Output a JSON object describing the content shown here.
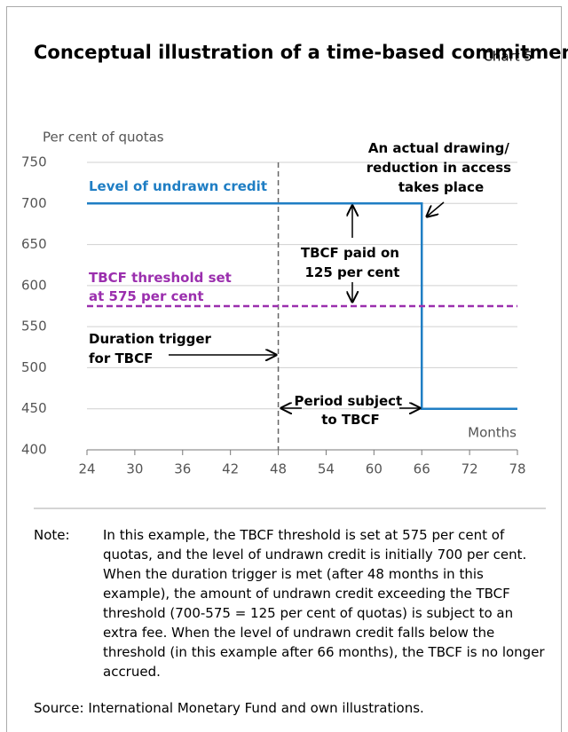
{
  "chart_data": {
    "type": "line",
    "title": "Conceptual illustration of a time-based commitment fee (TBCF)",
    "chart_label": "Chart 5",
    "y_axis_label": "Per cent of quotas",
    "x_axis_label": "Months",
    "xlim": [
      24,
      78
    ],
    "xticks": [
      24,
      30,
      36,
      42,
      48,
      54,
      60,
      66,
      72,
      78
    ],
    "ylim": [
      400,
      750
    ],
    "yticks": [
      400,
      450,
      500,
      550,
      600,
      650,
      700,
      750
    ],
    "grid": true,
    "series": [
      {
        "name": "Level of undrawn credit",
        "color": "#1f7ec4",
        "x": [
          24,
          66,
          66,
          78
        ],
        "values": [
          700,
          700,
          450,
          450
        ]
      },
      {
        "name": "TBCF threshold set at 575 per cent",
        "color": "#9b2fae",
        "dashed": true,
        "x": [
          24,
          78
        ],
        "values": [
          575,
          575
        ]
      }
    ],
    "vline": {
      "x": 48,
      "color": "#666666",
      "dashed": true
    },
    "annotations": [
      "An actual drawing/ reduction in access takes place",
      "TBCF paid on 125 per cent",
      "Duration trigger for TBCF",
      "Period subject to TBCF"
    ],
    "note_label": "Note:",
    "note": "In this example, the TBCF threshold is set at 575 per cent of quotas, and the level of undrawn credit is initially 700 per cent. When the duration trigger is met (after 48 months in this example), the amount of undrawn credit exceeding the TBCF threshold (700-575 = 125 per cent of quotas) is subject to an extra fee. When the level of undrawn credit falls below the threshold (in this example after 66 months), the TBCF is no longer accrued.",
    "source": "Source: International Monetary Fund and own illustrations."
  }
}
